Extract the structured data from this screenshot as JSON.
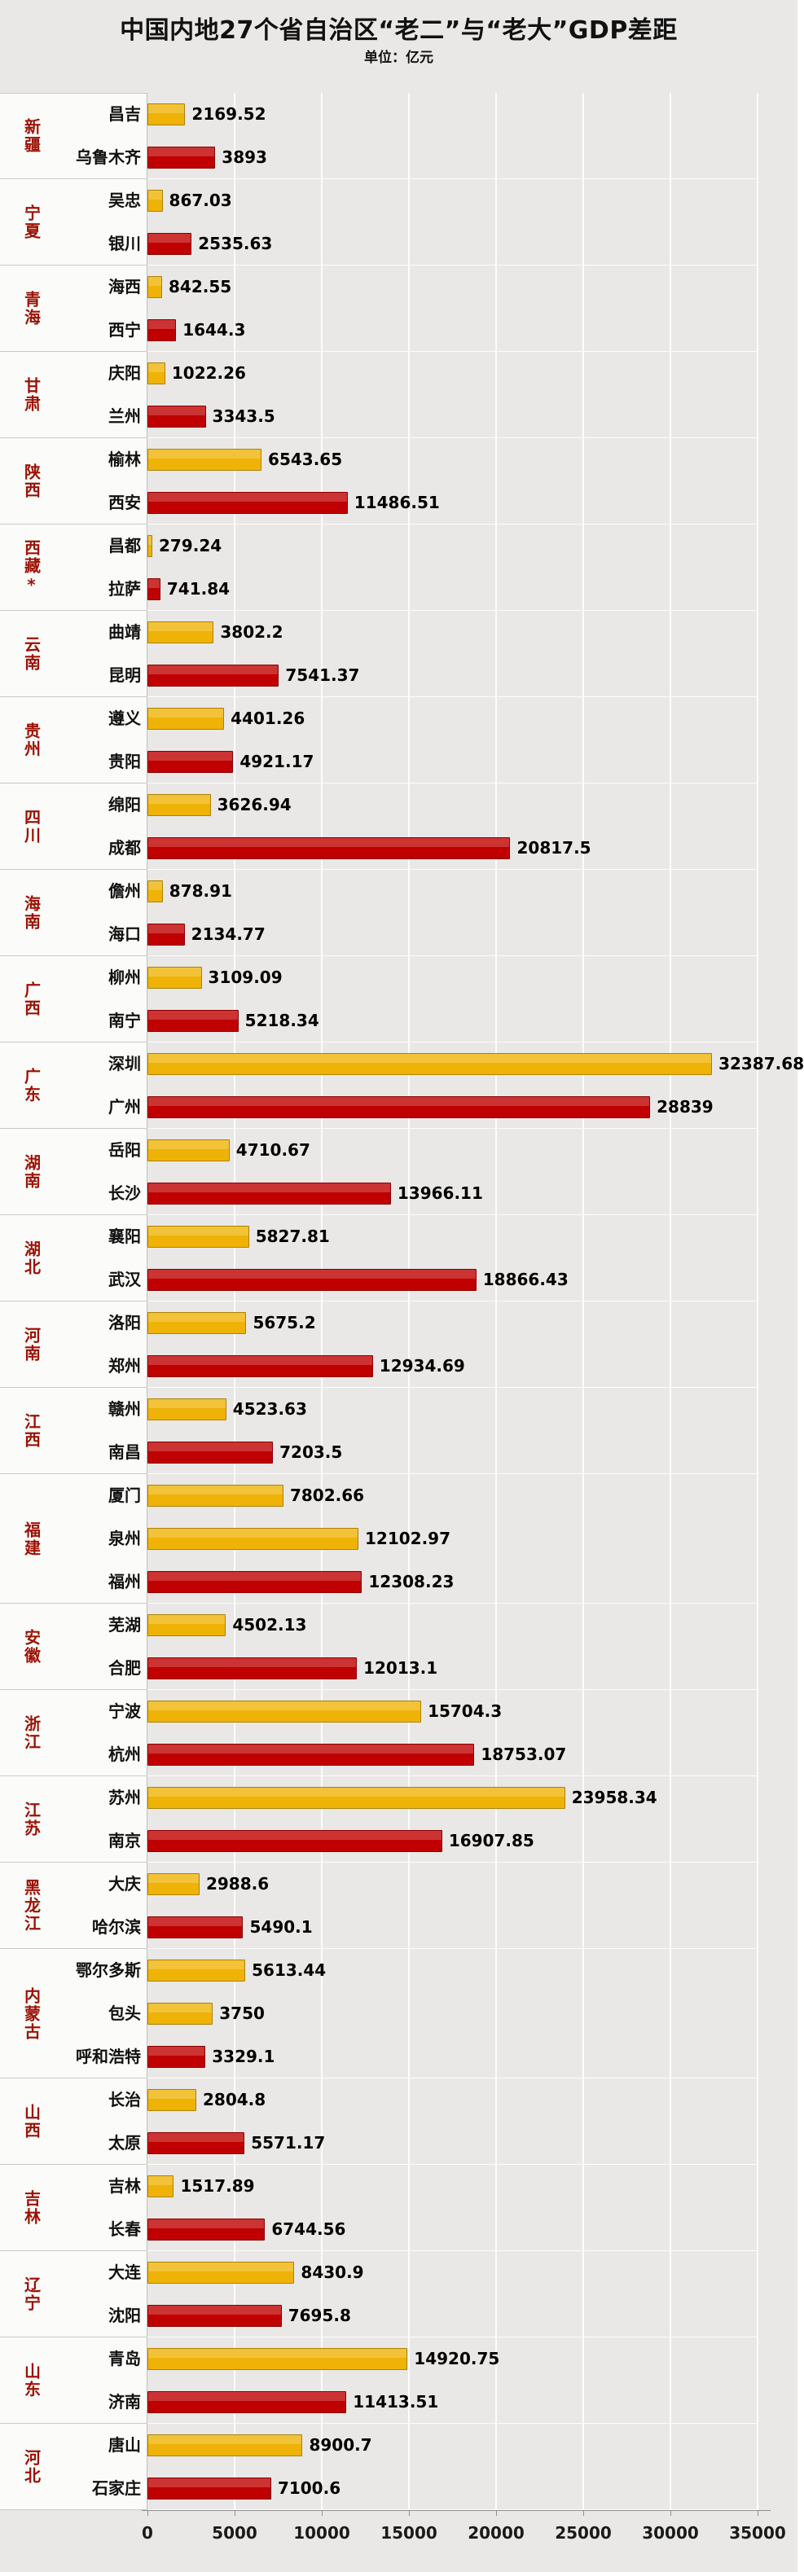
{
  "page": {
    "background": "#E9E8E6"
  },
  "header": {
    "title": "中国内地27个省自治区“老二”与“老大”GDP差距",
    "subtitle": "单位：亿元"
  },
  "chart_data": {
    "type": "bar",
    "orientation": "horizontal",
    "title": "中国内地27个省自治区“老二”与“老大”GDP差距",
    "subtitle": "单位：亿元",
    "unit": "亿元",
    "xlim": [
      0,
      35000
    ],
    "x_ticks": [
      "0",
      "5000",
      "10000",
      "15000",
      "20000",
      "25000",
      "30000",
      "35000"
    ],
    "grid": true,
    "legend": false,
    "colors": {
      "gold": "#EFB307",
      "red": "#C00000"
    },
    "groups": [
      {
        "province": "新疆",
        "cities": [
          {
            "name": "昌吉",
            "value": 2169.52,
            "color": "gold"
          },
          {
            "name": "乌鲁木齐",
            "value": 3893,
            "color": "red"
          }
        ]
      },
      {
        "province": "宁夏",
        "cities": [
          {
            "name": "吴忠",
            "value": 867.03,
            "color": "gold"
          },
          {
            "name": "银川",
            "value": 2535.63,
            "color": "red"
          }
        ]
      },
      {
        "province": "青海",
        "cities": [
          {
            "name": "海西",
            "value": 842.55,
            "color": "gold"
          },
          {
            "name": "西宁",
            "value": 1644.3,
            "color": "red"
          }
        ]
      },
      {
        "province": "甘肃",
        "cities": [
          {
            "name": "庆阳",
            "value": 1022.26,
            "color": "gold"
          },
          {
            "name": "兰州",
            "value": 3343.5,
            "color": "red"
          }
        ]
      },
      {
        "province": "陕西",
        "cities": [
          {
            "name": "榆林",
            "value": 6543.65,
            "color": "gold"
          },
          {
            "name": "西安",
            "value": 11486.51,
            "color": "red"
          }
        ]
      },
      {
        "province": "西藏*",
        "cities": [
          {
            "name": "昌都",
            "value": 279.24,
            "color": "gold"
          },
          {
            "name": "拉萨",
            "value": 741.84,
            "color": "red"
          }
        ]
      },
      {
        "province": "云南",
        "cities": [
          {
            "name": "曲靖",
            "value": 3802.2,
            "color": "gold"
          },
          {
            "name": "昆明",
            "value": 7541.37,
            "color": "red"
          }
        ]
      },
      {
        "province": "贵州",
        "cities": [
          {
            "name": "遵义",
            "value": 4401.26,
            "color": "gold"
          },
          {
            "name": "贵阳",
            "value": 4921.17,
            "color": "red"
          }
        ]
      },
      {
        "province": "四川",
        "cities": [
          {
            "name": "绵阳",
            "value": 3626.94,
            "color": "gold"
          },
          {
            "name": "成都",
            "value": 20817.5,
            "color": "red"
          }
        ]
      },
      {
        "province": "海南",
        "cities": [
          {
            "name": "儋州",
            "value": 878.91,
            "color": "gold"
          },
          {
            "name": "海口",
            "value": 2134.77,
            "color": "red"
          }
        ]
      },
      {
        "province": "广西",
        "cities": [
          {
            "name": "柳州",
            "value": 3109.09,
            "color": "gold"
          },
          {
            "name": "南宁",
            "value": 5218.34,
            "color": "red"
          }
        ]
      },
      {
        "province": "广东",
        "cities": [
          {
            "name": "深圳",
            "value": 32387.68,
            "color": "gold"
          },
          {
            "name": "广州",
            "value": 28839,
            "color": "red"
          }
        ]
      },
      {
        "province": "湖南",
        "cities": [
          {
            "name": "岳阳",
            "value": 4710.67,
            "color": "gold"
          },
          {
            "name": "长沙",
            "value": 13966.11,
            "color": "red"
          }
        ]
      },
      {
        "province": "湖北",
        "cities": [
          {
            "name": "襄阳",
            "value": 5827.81,
            "color": "gold"
          },
          {
            "name": "武汉",
            "value": 18866.43,
            "color": "red"
          }
        ]
      },
      {
        "province": "河南",
        "cities": [
          {
            "name": "洛阳",
            "value": 5675.2,
            "color": "gold"
          },
          {
            "name": "郑州",
            "value": 12934.69,
            "color": "red"
          }
        ]
      },
      {
        "province": "江西",
        "cities": [
          {
            "name": "赣州",
            "value": 4523.63,
            "color": "gold"
          },
          {
            "name": "南昌",
            "value": 7203.5,
            "color": "red"
          }
        ]
      },
      {
        "province": "福建",
        "cities": [
          {
            "name": "厦门",
            "value": 7802.66,
            "color": "gold"
          },
          {
            "name": "泉州",
            "value": 12102.97,
            "color": "gold"
          },
          {
            "name": "福州",
            "value": 12308.23,
            "color": "red"
          }
        ]
      },
      {
        "province": "安徽",
        "cities": [
          {
            "name": "芜湖",
            "value": 4502.13,
            "color": "gold"
          },
          {
            "name": "合肥",
            "value": 12013.1,
            "color": "red"
          }
        ]
      },
      {
        "province": "浙江",
        "cities": [
          {
            "name": "宁波",
            "value": 15704.3,
            "color": "gold"
          },
          {
            "name": "杭州",
            "value": 18753.07,
            "color": "red"
          }
        ]
      },
      {
        "province": "江苏",
        "cities": [
          {
            "name": "苏州",
            "value": 23958.34,
            "color": "gold"
          },
          {
            "name": "南京",
            "value": 16907.85,
            "color": "red"
          }
        ]
      },
      {
        "province": "黑龙江",
        "cities": [
          {
            "name": "大庆",
            "value": 2988.6,
            "color": "gold"
          },
          {
            "name": "哈尔滨",
            "value": 5490.1,
            "color": "red"
          }
        ]
      },
      {
        "province": "内蒙古",
        "cities": [
          {
            "name": "鄂尔多斯",
            "value": 5613.44,
            "color": "gold"
          },
          {
            "name": "包头",
            "value": 3750,
            "color": "gold"
          },
          {
            "name": "呼和浩特",
            "value": 3329.1,
            "color": "red"
          }
        ]
      },
      {
        "province": "山西",
        "cities": [
          {
            "name": "长治",
            "value": 2804.8,
            "color": "gold"
          },
          {
            "name": "太原",
            "value": 5571.17,
            "color": "red"
          }
        ]
      },
      {
        "province": "吉林",
        "cities": [
          {
            "name": "吉林",
            "value": 1517.89,
            "color": "gold"
          },
          {
            "name": "长春",
            "value": 6744.56,
            "color": "red"
          }
        ]
      },
      {
        "province": "辽宁",
        "cities": [
          {
            "name": "大连",
            "value": 8430.9,
            "color": "gold"
          },
          {
            "name": "沈阳",
            "value": 7695.8,
            "color": "red"
          }
        ]
      },
      {
        "province": "山东",
        "cities": [
          {
            "name": "青岛",
            "value": 14920.75,
            "color": "gold"
          },
          {
            "name": "济南",
            "value": 11413.51,
            "color": "red"
          }
        ]
      },
      {
        "province": "河北",
        "cities": [
          {
            "name": "唐山",
            "value": 8900.7,
            "color": "gold"
          },
          {
            "name": "石家庄",
            "value": 7100.6,
            "color": "red"
          }
        ]
      }
    ]
  }
}
